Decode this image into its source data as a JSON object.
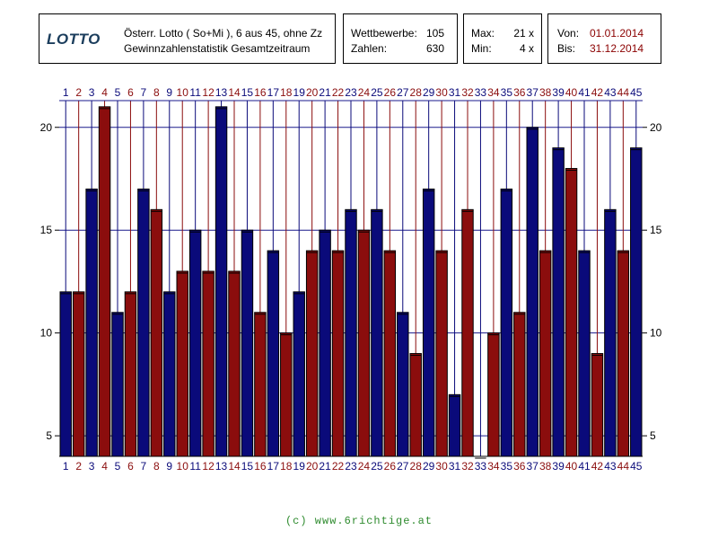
{
  "header": {
    "logo": "LOTTO",
    "subtitle_line1": "Österr. Lotto ( So+Mi ), 6 aus 45, ohne Zz",
    "subtitle_line2": "Gewinnzahlenstatistik Gesamtzeitraum",
    "wettbewerbe_label": "Wettbewerbe:",
    "wettbewerbe_value": "105",
    "zahlen_label": "Zahlen:",
    "zahlen_value": "630",
    "max_label": "Max:",
    "max_value": "21 x",
    "min_label": "Min:",
    "min_value": "4 x",
    "von_label": "Von:",
    "von_value": "01.01.2014",
    "bis_label": "Bis:",
    "bis_value": "31.12.2014"
  },
  "footer": "(c) www.6richtige.at",
  "colors": {
    "odd": "#0a0a7a",
    "even": "#8b0d0d",
    "grid": "#1a1a8c",
    "frame": "#000000"
  },
  "chart_data": {
    "type": "bar",
    "title": "",
    "xlabel": "",
    "ylabel": "",
    "categories": [
      "1",
      "2",
      "3",
      "4",
      "5",
      "6",
      "7",
      "8",
      "9",
      "10",
      "11",
      "12",
      "13",
      "14",
      "15",
      "16",
      "17",
      "18",
      "19",
      "20",
      "21",
      "22",
      "23",
      "24",
      "25",
      "26",
      "27",
      "28",
      "29",
      "30",
      "31",
      "32",
      "33",
      "34",
      "35",
      "36",
      "37",
      "38",
      "39",
      "40",
      "41",
      "42",
      "43",
      "44",
      "45"
    ],
    "values": [
      12,
      12,
      17,
      21,
      11,
      12,
      17,
      16,
      12,
      13,
      15,
      13,
      21,
      13,
      15,
      11,
      14,
      10,
      12,
      14,
      15,
      14,
      16,
      15,
      16,
      14,
      11,
      9,
      17,
      14,
      7,
      16,
      4,
      10,
      17,
      11,
      20,
      14,
      19,
      18,
      14,
      9,
      16,
      14,
      19
    ],
    "ylim": [
      4,
      21.3
    ],
    "yticks": [
      5,
      10,
      15,
      20
    ],
    "grid": true,
    "legend": "none"
  }
}
